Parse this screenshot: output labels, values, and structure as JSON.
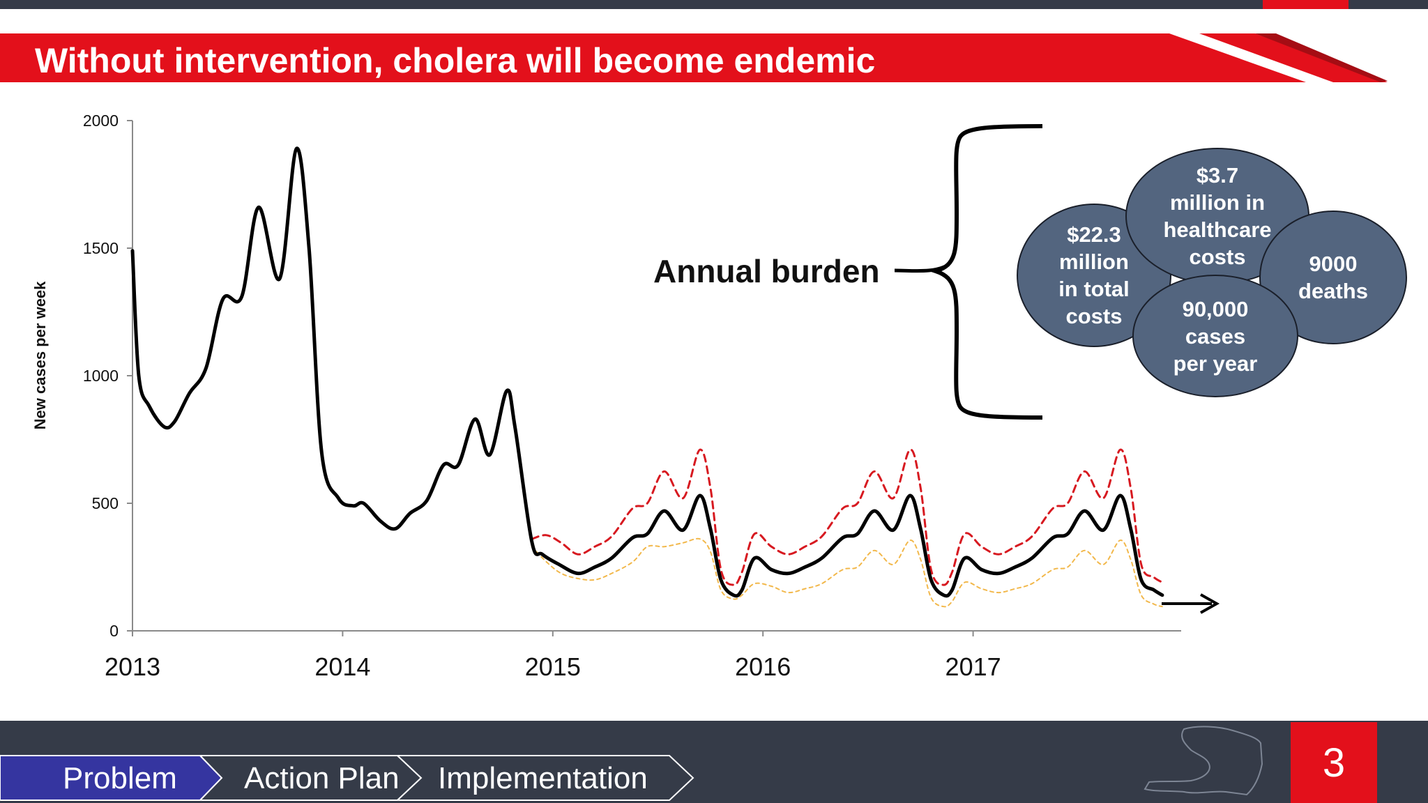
{
  "slide": {
    "title": "Without intervention, cholera will become endemic",
    "page_number": "3"
  },
  "nav": {
    "items": [
      "Problem",
      "Action Plan",
      "Implementation"
    ],
    "active": "Problem"
  },
  "annotation": {
    "label": "Annual burden",
    "bubbles": [
      {
        "name": "total-costs",
        "text": "$22.3\nmillion\nin total\ncosts"
      },
      {
        "name": "healthcare-costs",
        "text": "$3.7\nmillion in\nhealthcare\ncosts"
      },
      {
        "name": "deaths",
        "text": "9000\ndeaths"
      },
      {
        "name": "cases-per-year",
        "text": "90,000\ncases\nper year"
      }
    ]
  },
  "colors": {
    "banner_red": "#e3101b",
    "dark_bar": "#353b48",
    "nav_active": "#3535a0",
    "bubble_fill": "#53657f",
    "series_observed": "#000000",
    "series_upper": "#d71920",
    "series_lower": "#f2b84b"
  },
  "chart_data": {
    "type": "line",
    "ylabel": "New cases per week",
    "xlabel": "",
    "ylim": [
      0,
      2000
    ],
    "yticks": [
      0,
      500,
      1000,
      1500,
      2000
    ],
    "xlim": [
      2013,
      2018
    ],
    "xticks": [
      2013,
      2014,
      2015,
      2016,
      2017
    ],
    "grid": false,
    "series": [
      {
        "name": "",
        "style": "solid",
        "color": "#000000",
        "points": [
          [
            2013.0,
            1490
          ],
          [
            2013.03,
            1000
          ],
          [
            2013.08,
            880
          ],
          [
            2013.15,
            800
          ],
          [
            2013.2,
            820
          ],
          [
            2013.27,
            930
          ],
          [
            2013.35,
            1030
          ],
          [
            2013.43,
            1300
          ],
          [
            2013.52,
            1310
          ],
          [
            2013.6,
            1660
          ],
          [
            2013.7,
            1380
          ],
          [
            2013.78,
            1890
          ],
          [
            2013.84,
            1500
          ],
          [
            2013.9,
            700
          ],
          [
            2013.98,
            520
          ],
          [
            2014.05,
            490
          ],
          [
            2014.1,
            500
          ],
          [
            2014.18,
            430
          ],
          [
            2014.25,
            400
          ],
          [
            2014.32,
            460
          ],
          [
            2014.4,
            510
          ],
          [
            2014.48,
            650
          ],
          [
            2014.55,
            650
          ],
          [
            2014.63,
            830
          ],
          [
            2014.7,
            690
          ],
          [
            2014.78,
            940
          ],
          [
            2014.82,
            800
          ],
          [
            2014.9,
            350
          ],
          [
            2014.95,
            300
          ],
          [
            2015.03,
            260
          ],
          [
            2015.12,
            225
          ],
          [
            2015.2,
            250
          ],
          [
            2015.28,
            285
          ],
          [
            2015.38,
            365
          ],
          [
            2015.45,
            380
          ],
          [
            2015.53,
            470
          ],
          [
            2015.62,
            395
          ],
          [
            2015.7,
            530
          ],
          [
            2015.75,
            400
          ],
          [
            2015.8,
            200
          ],
          [
            2015.86,
            140
          ],
          [
            2015.9,
            160
          ],
          [
            2015.96,
            285
          ],
          [
            2016.04,
            240
          ],
          [
            2016.12,
            225
          ],
          [
            2016.2,
            250
          ],
          [
            2016.28,
            285
          ],
          [
            2016.38,
            365
          ],
          [
            2016.45,
            380
          ],
          [
            2016.53,
            470
          ],
          [
            2016.62,
            395
          ],
          [
            2016.7,
            530
          ],
          [
            2016.75,
            400
          ],
          [
            2016.8,
            200
          ],
          [
            2016.86,
            140
          ],
          [
            2016.9,
            160
          ],
          [
            2016.96,
            285
          ],
          [
            2017.04,
            240
          ],
          [
            2017.12,
            225
          ],
          [
            2017.2,
            250
          ],
          [
            2017.28,
            285
          ],
          [
            2017.38,
            365
          ],
          [
            2017.45,
            380
          ],
          [
            2017.53,
            470
          ],
          [
            2017.62,
            395
          ],
          [
            2017.7,
            530
          ],
          [
            2017.75,
            400
          ],
          [
            2017.8,
            200
          ],
          [
            2017.86,
            160
          ],
          [
            2017.9,
            140
          ]
        ]
      },
      {
        "name": "",
        "style": "dashed",
        "color": "#d71920",
        "points": [
          [
            2014.9,
            360
          ],
          [
            2014.97,
            375
          ],
          [
            2015.04,
            345
          ],
          [
            2015.12,
            300
          ],
          [
            2015.2,
            330
          ],
          [
            2015.28,
            370
          ],
          [
            2015.38,
            480
          ],
          [
            2015.45,
            500
          ],
          [
            2015.53,
            625
          ],
          [
            2015.62,
            520
          ],
          [
            2015.7,
            710
          ],
          [
            2015.75,
            560
          ],
          [
            2015.8,
            240
          ],
          [
            2015.86,
            180
          ],
          [
            2015.9,
            230
          ],
          [
            2015.96,
            380
          ],
          [
            2016.04,
            330
          ],
          [
            2016.12,
            300
          ],
          [
            2016.2,
            330
          ],
          [
            2016.28,
            370
          ],
          [
            2016.38,
            480
          ],
          [
            2016.45,
            500
          ],
          [
            2016.53,
            625
          ],
          [
            2016.62,
            520
          ],
          [
            2016.7,
            710
          ],
          [
            2016.75,
            560
          ],
          [
            2016.8,
            240
          ],
          [
            2016.86,
            180
          ],
          [
            2016.9,
            230
          ],
          [
            2016.96,
            380
          ],
          [
            2017.04,
            330
          ],
          [
            2017.12,
            300
          ],
          [
            2017.2,
            330
          ],
          [
            2017.28,
            370
          ],
          [
            2017.38,
            480
          ],
          [
            2017.45,
            500
          ],
          [
            2017.53,
            625
          ],
          [
            2017.62,
            520
          ],
          [
            2017.7,
            710
          ],
          [
            2017.75,
            560
          ],
          [
            2017.8,
            260
          ],
          [
            2017.86,
            210
          ],
          [
            2017.9,
            190
          ]
        ]
      },
      {
        "name": "",
        "style": "dashed",
        "color": "#f2b84b",
        "points": [
          [
            2014.9,
            330
          ],
          [
            2014.97,
            270
          ],
          [
            2015.04,
            225
          ],
          [
            2015.12,
            205
          ],
          [
            2015.2,
            200
          ],
          [
            2015.28,
            225
          ],
          [
            2015.38,
            270
          ],
          [
            2015.45,
            330
          ],
          [
            2015.53,
            330
          ],
          [
            2015.62,
            345
          ],
          [
            2015.7,
            360
          ],
          [
            2015.75,
            310
          ],
          [
            2015.8,
            160
          ],
          [
            2015.86,
            125
          ],
          [
            2015.9,
            140
          ],
          [
            2015.96,
            185
          ],
          [
            2016.04,
            175
          ],
          [
            2016.12,
            150
          ],
          [
            2016.2,
            165
          ],
          [
            2016.28,
            185
          ],
          [
            2016.38,
            240
          ],
          [
            2016.45,
            250
          ],
          [
            2016.53,
            315
          ],
          [
            2016.62,
            260
          ],
          [
            2016.7,
            355
          ],
          [
            2016.75,
            280
          ],
          [
            2016.8,
            130
          ],
          [
            2016.86,
            95
          ],
          [
            2016.9,
            115
          ],
          [
            2016.96,
            190
          ],
          [
            2017.04,
            165
          ],
          [
            2017.12,
            150
          ],
          [
            2017.2,
            165
          ],
          [
            2017.28,
            185
          ],
          [
            2017.38,
            240
          ],
          [
            2017.45,
            250
          ],
          [
            2017.53,
            315
          ],
          [
            2017.62,
            260
          ],
          [
            2017.7,
            355
          ],
          [
            2017.75,
            280
          ],
          [
            2017.8,
            140
          ],
          [
            2017.86,
            105
          ],
          [
            2017.9,
            95
          ]
        ]
      }
    ]
  }
}
